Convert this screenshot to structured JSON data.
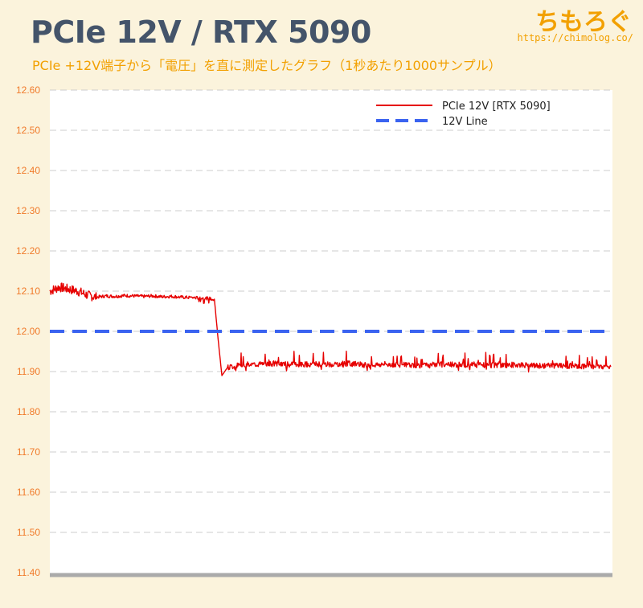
{
  "header": {
    "title": "PCIe 12V / RTX 5090",
    "subtitle": "PCIe +12V端子から「電圧」を直に測定したグラフ（1秒あたり1000サンプル）",
    "brand_name": "ちもろぐ",
    "brand_url": "https://chimolog.co/"
  },
  "colors": {
    "title": "#44546a",
    "accent": "#f2a000",
    "tick_labels": "#f07a2a",
    "series_red": "#e60000",
    "series_blue": "#3a63f0",
    "grid": "#cccccc",
    "baseline": "#aaaaaa"
  },
  "chart_data": {
    "type": "line",
    "title": "PCIe 12V / RTX 5090",
    "ylim": [
      11.4,
      12.6
    ],
    "yticks": [
      "12.60",
      "12.50",
      "12.40",
      "12.30",
      "12.20",
      "12.10",
      "12.00",
      "11.90",
      "11.80",
      "11.70",
      "11.60",
      "11.50",
      "11.40"
    ],
    "grid": "horizontal dashed",
    "legend_position": "top-right",
    "series": [
      {
        "name": "PCIe 12V [RTX 5090]",
        "style": "solid",
        "color": "#e60000",
        "x": [
          0,
          0.5,
          1,
          1.5,
          2,
          2.5,
          3,
          3.5,
          4,
          4.5,
          5,
          5.5,
          6,
          6.5,
          7,
          7.5,
          8,
          8.5,
          8.8,
          9.0,
          9.2,
          9.5,
          10,
          11,
          12,
          13,
          14,
          15,
          16,
          17,
          18,
          19,
          20,
          21,
          22,
          23,
          24,
          25,
          26,
          27,
          28,
          29,
          30
        ],
        "values": [
          12.1,
          12.11,
          12.105,
          12.1,
          12.09,
          12.085,
          12.088,
          12.087,
          12.089,
          12.088,
          12.087,
          12.088,
          12.086,
          12.087,
          12.085,
          12.084,
          12.083,
          12.082,
          12.08,
          11.98,
          11.89,
          11.91,
          11.915,
          11.918,
          11.92,
          11.917,
          11.919,
          11.918,
          11.92,
          11.916,
          11.918,
          11.917,
          11.915,
          11.918,
          11.917,
          11.916,
          11.915,
          11.917,
          11.914,
          11.915,
          11.914,
          11.913,
          11.912
        ]
      },
      {
        "name": "12V Line",
        "style": "dashed",
        "color": "#3a63f0",
        "x": [
          0,
          30
        ],
        "values": [
          12.0,
          12.0
        ]
      }
    ]
  }
}
